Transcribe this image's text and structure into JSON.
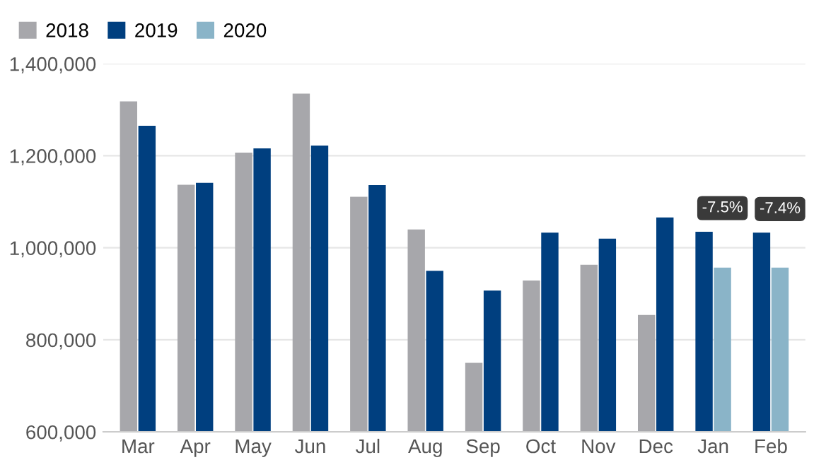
{
  "chart_data": {
    "type": "bar",
    "categories": [
      "Mar",
      "Apr",
      "May",
      "Jun",
      "Jul",
      "Aug",
      "Sep",
      "Oct",
      "Nov",
      "Dec",
      "Jan",
      "Feb"
    ],
    "series": [
      {
        "name": "2018",
        "color": "#a7a7ab",
        "values": [
          1318000,
          1137000,
          1207000,
          1335000,
          1111000,
          1040000,
          750000,
          929000,
          963000,
          854000,
          null,
          null
        ]
      },
      {
        "name": "2019",
        "color": "#003f7f",
        "values": [
          1265000,
          1141000,
          1216000,
          1222000,
          1136000,
          950000,
          907000,
          1033000,
          1020000,
          1066000,
          1035000,
          1033000
        ]
      },
      {
        "name": "2020",
        "color": "#8ab4c8",
        "values": [
          null,
          null,
          null,
          null,
          null,
          null,
          null,
          null,
          null,
          null,
          957000,
          957000
        ]
      }
    ],
    "ylim": [
      600000,
      1400000
    ],
    "yticks": [
      {
        "value": 600000,
        "label": "600,000"
      },
      {
        "value": 800000,
        "label": "800,000"
      },
      {
        "value": 1000000,
        "label": "1,000,000"
      },
      {
        "value": 1200000,
        "label": "1,200,000"
      },
      {
        "value": 1400000,
        "label": "1,400,000"
      }
    ],
    "annotations": [
      "-7.5%",
      "-7.4%"
    ],
    "grid": "y",
    "legend": "top left"
  }
}
